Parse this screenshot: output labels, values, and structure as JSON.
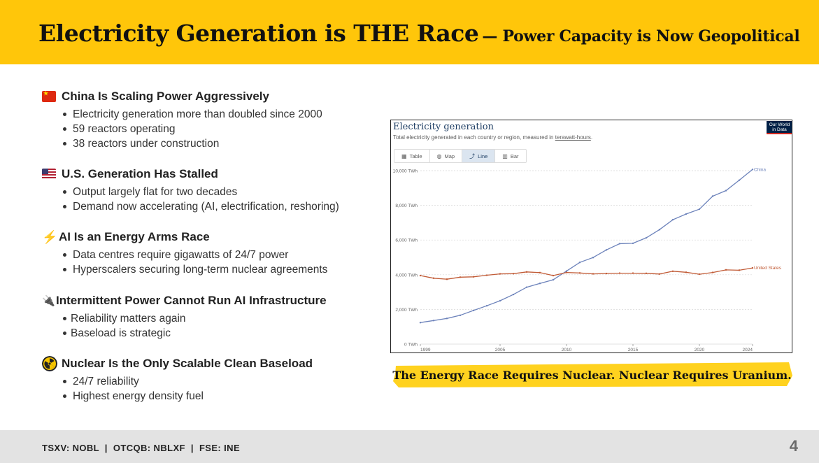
{
  "header": {
    "title": "Electricity Generation is THE Race",
    "subtitle": "— Power Capacity is Now Geopolitical"
  },
  "sections": [
    {
      "icon": "china-flag-icon",
      "title": "China Is Scaling Power Aggressively",
      "bullets": [
        "Electricity generation more than doubled since 2000",
        "59 reactors operating",
        "38 reactors under construction"
      ]
    },
    {
      "icon": "us-flag-icon",
      "title": "U.S. Generation Has Stalled",
      "bullets": [
        "Output largely flat for two decades",
        "Demand now accelerating (AI, electrification, reshoring)"
      ]
    },
    {
      "icon": "lightning-bolt-icon",
      "icon_glyph": "⚡",
      "title": "AI Is an Energy Arms Race",
      "bullets": [
        "Data centres require gigawatts of 24/7 power",
        "Hyperscalers securing long-term nuclear agreements"
      ]
    },
    {
      "icon": "electric-plug-icon",
      "icon_glyph": "🔌",
      "title": "Intermittent Power Cannot Run AI Infrastructure",
      "bullets": [
        "Reliability matters again",
        "Baseload is strategic"
      ]
    },
    {
      "icon": "radioactive-icon",
      "title": "Nuclear Is the Only Scalable Clean Baseload",
      "bullets": [
        "24/7 reliability",
        "Highest energy density fuel"
      ]
    }
  ],
  "chart_card": {
    "logo_line1": "Our World",
    "logo_line2": "in Data",
    "tabs": [
      {
        "glyph": "▦",
        "label": "Table",
        "active": false
      },
      {
        "glyph": "◍",
        "label": "Map",
        "active": false
      },
      {
        "glyph": "⤴",
        "label": "Line",
        "active": true
      },
      {
        "glyph": "▥",
        "label": "Bar",
        "active": false
      }
    ]
  },
  "chart_data": {
    "type": "line",
    "title": "Electricity generation",
    "subtitle_prefix": "Total electricity generated in each country or region, measured in ",
    "subtitle_link": "terawatt-hours",
    "subtitle_suffix": ".",
    "xlabel": "",
    "ylabel": "",
    "xlim": [
      1999,
      2024
    ],
    "ylim": [
      0,
      10000
    ],
    "x_ticks": [
      1999,
      2005,
      2010,
      2015,
      2020,
      2024
    ],
    "y_ticks": [
      {
        "value": 0,
        "label": "0 TWh"
      },
      {
        "value": 2000,
        "label": "2,000 TWh"
      },
      {
        "value": 4000,
        "label": "4,000 TWh"
      },
      {
        "value": 6000,
        "label": "6,000 TWh"
      },
      {
        "value": 8000,
        "label": "8,000 TWh"
      },
      {
        "value": 10000,
        "label": "10,000 TWh"
      }
    ],
    "grid": true,
    "x": [
      1999,
      2000,
      2001,
      2002,
      2003,
      2004,
      2005,
      2006,
      2007,
      2008,
      2009,
      2010,
      2011,
      2012,
      2013,
      2014,
      2015,
      2016,
      2017,
      2018,
      2019,
      2020,
      2021,
      2022,
      2023,
      2024
    ],
    "series": [
      {
        "name": "China",
        "color": "#6D83BB",
        "values": [
          1240,
          1360,
          1480,
          1660,
          1940,
          2210,
          2500,
          2860,
          3280,
          3500,
          3710,
          4210,
          4710,
          4990,
          5430,
          5790,
          5810,
          6130,
          6600,
          7170,
          7500,
          7780,
          8530,
          8850,
          9450,
          10070
        ]
      },
      {
        "name": "United States",
        "color": "#C15B36",
        "values": [
          3950,
          3800,
          3740,
          3860,
          3880,
          3970,
          4050,
          4060,
          4160,
          4120,
          3950,
          4130,
          4100,
          4050,
          4070,
          4090,
          4090,
          4080,
          4040,
          4200,
          4140,
          4030,
          4130,
          4280,
          4260,
          4390
        ]
      }
    ]
  },
  "banner": {
    "text": "The Energy Race Requires Nuclear. Nuclear Requires Uranium.",
    "color": "#FFD21F"
  },
  "footer": {
    "tickers": "TSXV: NOBL  |  OTCQB: NBLXF  |  FSE: INE",
    "page_number": "4"
  },
  "colors": {
    "header": "#FFC60A",
    "footer": "#E3E3E3"
  }
}
